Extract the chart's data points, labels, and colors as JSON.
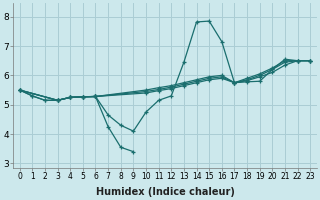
{
  "xlabel": "Humidex (Indice chaleur)",
  "background_color": "#cce8ec",
  "grid_color": "#aacdd4",
  "line_color": "#1a6e6e",
  "xlim": [
    -0.5,
    23.5
  ],
  "ylim": [
    2.85,
    8.45
  ],
  "yticks": [
    3,
    4,
    5,
    6,
    7,
    8
  ],
  "xticks": [
    0,
    1,
    2,
    3,
    4,
    5,
    6,
    7,
    8,
    9,
    10,
    11,
    12,
    13,
    14,
    15,
    16,
    17,
    18,
    19,
    20,
    21,
    22,
    23
  ],
  "lines": [
    {
      "x": [
        0,
        1,
        2,
        3,
        4,
        5,
        6,
        7,
        8,
        9,
        10,
        11,
        12,
        13,
        14,
        15,
        16,
        17,
        18,
        19,
        20,
        21,
        22,
        23
      ],
      "y": [
        5.5,
        5.3,
        5.15,
        5.15,
        5.25,
        5.27,
        5.28,
        4.65,
        4.3,
        4.1,
        4.75,
        5.15,
        5.3,
        6.45,
        7.82,
        7.85,
        7.15,
        5.75,
        5.78,
        5.8,
        6.2,
        6.55,
        6.5,
        6.5
      ]
    },
    {
      "x": [
        0,
        1,
        2,
        3,
        4,
        5,
        6,
        7,
        8,
        9
      ],
      "y": [
        5.5,
        5.3,
        5.15,
        5.15,
        5.25,
        5.27,
        5.28,
        4.25,
        3.55,
        3.4
      ]
    },
    {
      "x": [
        0,
        3,
        4,
        5,
        6,
        10,
        11,
        12,
        13,
        14,
        15,
        16,
        17,
        18,
        19,
        20,
        21,
        22,
        23
      ],
      "y": [
        5.5,
        5.15,
        5.25,
        5.27,
        5.28,
        5.4,
        5.48,
        5.55,
        5.65,
        5.75,
        5.85,
        5.9,
        5.75,
        5.82,
        5.95,
        6.1,
        6.35,
        6.5,
        6.5
      ]
    },
    {
      "x": [
        0,
        3,
        4,
        5,
        6,
        10,
        11,
        12,
        13,
        14,
        15,
        16,
        17,
        18,
        19,
        20,
        21,
        22,
        23
      ],
      "y": [
        5.5,
        5.15,
        5.25,
        5.27,
        5.28,
        5.45,
        5.52,
        5.6,
        5.7,
        5.8,
        5.9,
        5.95,
        5.75,
        5.85,
        6.0,
        6.2,
        6.45,
        6.5,
        6.5
      ]
    },
    {
      "x": [
        0,
        3,
        4,
        5,
        6,
        10,
        11,
        12,
        13,
        14,
        15,
        16,
        17,
        18,
        19,
        20,
        21,
        22,
        23
      ],
      "y": [
        5.5,
        5.15,
        5.25,
        5.27,
        5.28,
        5.5,
        5.58,
        5.65,
        5.75,
        5.85,
        5.95,
        6.0,
        5.75,
        5.9,
        6.05,
        6.25,
        6.5,
        6.5,
        6.5
      ]
    }
  ]
}
